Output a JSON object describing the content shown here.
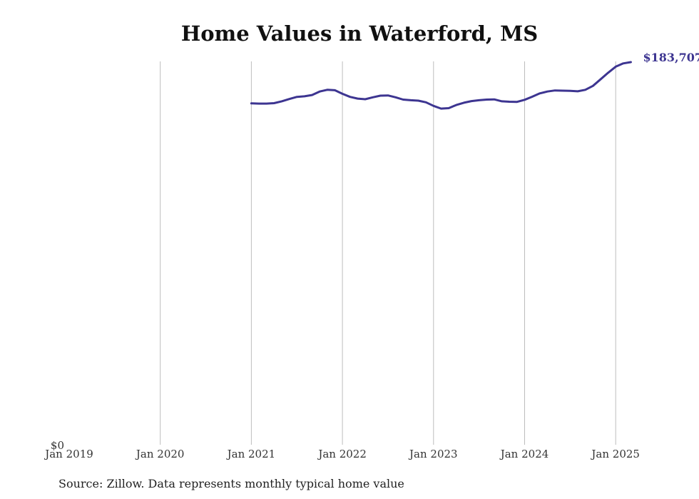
{
  "chart_data": {
    "type": "line",
    "title": "Home Values in Waterford, MS",
    "xlabel": "",
    "ylabel": "",
    "y_tick_label": "$0",
    "x_ticks": [
      "Jan 2019",
      "Jan 2020",
      "Jan 2021",
      "Jan 2022",
      "Jan 2023",
      "Jan 2024",
      "Jan 2025"
    ],
    "x_range": [
      "2019-01",
      "2025-03"
    ],
    "y_range": [
      0,
      183707
    ],
    "grid": "vertical",
    "line_color": "#3d3591",
    "end_label": "$183,707",
    "series": [
      {
        "name": "",
        "x": [
          "2021-01",
          "2021-02",
          "2021-03",
          "2021-04",
          "2021-05",
          "2021-06",
          "2021-07",
          "2021-08",
          "2021-09",
          "2021-10",
          "2021-11",
          "2021-12",
          "2022-01",
          "2022-02",
          "2022-03",
          "2022-04",
          "2022-05",
          "2022-06",
          "2022-07",
          "2022-08",
          "2022-09",
          "2022-10",
          "2022-11",
          "2022-12",
          "2023-01",
          "2023-02",
          "2023-03",
          "2023-04",
          "2023-05",
          "2023-06",
          "2023-07",
          "2023-08",
          "2023-09",
          "2023-10",
          "2023-11",
          "2023-12",
          "2024-01",
          "2024-02",
          "2024-03",
          "2024-04",
          "2024-05",
          "2024-06",
          "2024-07",
          "2024-08",
          "2024-09",
          "2024-10",
          "2024-11",
          "2024-12",
          "2025-01",
          "2025-02",
          "2025-03"
        ],
        "y": [
          163900,
          163800,
          163800,
          164000,
          164900,
          166000,
          167000,
          167300,
          167900,
          169600,
          170400,
          170200,
          168500,
          167000,
          166200,
          165900,
          166800,
          167600,
          167700,
          166800,
          165700,
          165400,
          165200,
          164400,
          162700,
          161400,
          161600,
          163100,
          164200,
          165000,
          165400,
          165700,
          165800,
          164900,
          164700,
          164600,
          165600,
          167100,
          168700,
          169600,
          170100,
          170000,
          169900,
          169700,
          170400,
          172300,
          175400,
          178600,
          181500,
          183100,
          183707
        ]
      }
    ]
  },
  "footer": {
    "source": "Source: Zillow. Data represents monthly typical home value"
  }
}
